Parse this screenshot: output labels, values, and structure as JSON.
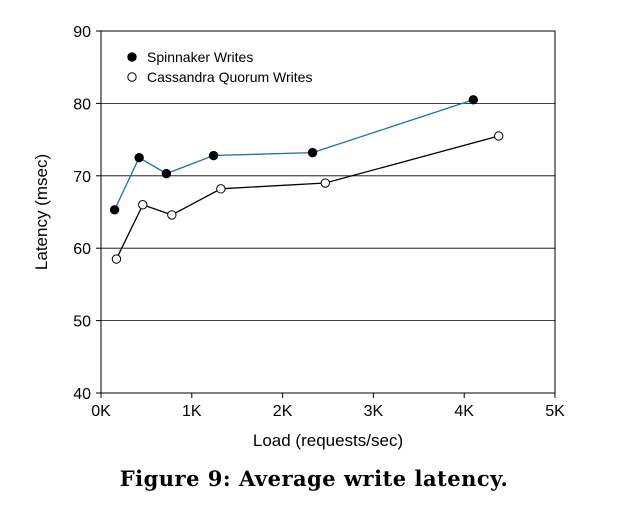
{
  "caption": "Figure 9: Average write latency.",
  "chart_data": {
    "type": "line",
    "title": "",
    "xlabel": "Load (requests/sec)",
    "ylabel": "Latency (msec)",
    "xlim": [
      0,
      5000
    ],
    "ylim": [
      40,
      90
    ],
    "x_ticks": [
      {
        "value": 0,
        "label": "0K"
      },
      {
        "value": 1000,
        "label": "1K"
      },
      {
        "value": 2000,
        "label": "2K"
      },
      {
        "value": 3000,
        "label": "3K"
      },
      {
        "value": 4000,
        "label": "4K"
      },
      {
        "value": 5000,
        "label": "5K"
      }
    ],
    "y_ticks": [
      40,
      50,
      60,
      70,
      80,
      90
    ],
    "grid": "horizontal",
    "legend_position": "top-left",
    "series": [
      {
        "name": "Spinnaker Writes",
        "color": "#1f6fb5",
        "marker": "filled-circle",
        "points": [
          [
            150,
            65.3
          ],
          [
            420,
            72.5
          ],
          [
            720,
            70.3
          ],
          [
            1240,
            72.8
          ],
          [
            2330,
            73.2
          ],
          [
            4100,
            80.5
          ]
        ]
      },
      {
        "name": "Cassandra Quorum Writes",
        "color": "#000000",
        "marker": "open-circle",
        "points": [
          [
            170,
            58.5
          ],
          [
            460,
            66.0
          ],
          [
            780,
            64.6
          ],
          [
            1320,
            68.2
          ],
          [
            2470,
            69.0
          ],
          [
            4380,
            75.5
          ]
        ]
      }
    ]
  }
}
